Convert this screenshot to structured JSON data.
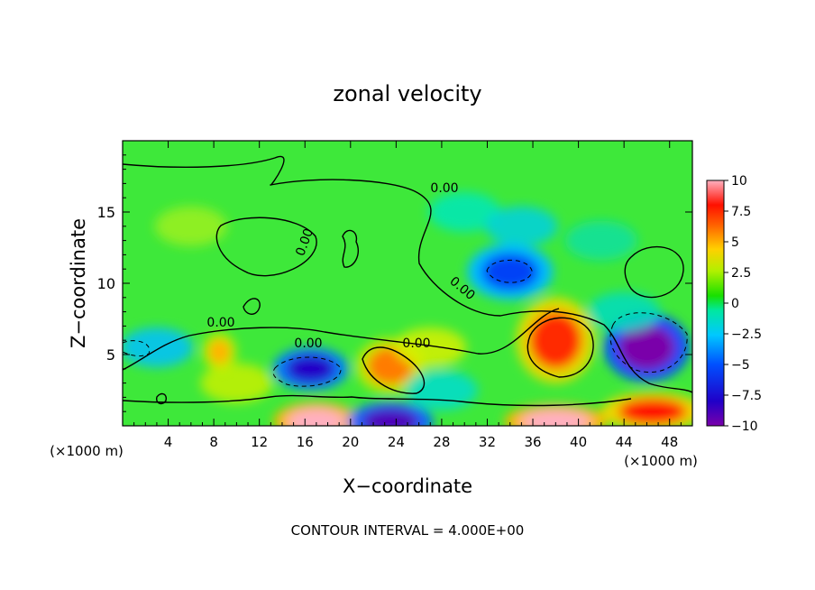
{
  "chart_data": {
    "type": "heatmap",
    "title": "zonal velocity",
    "xlabel": "X−coordinate",
    "ylabel": "Z−coordinate",
    "x_unit": "(×1000 m)",
    "x_unit_right": "(×1000 m)",
    "footer": "CONTOUR INTERVAL = 4.000E+00",
    "xlim": [
      0,
      50
    ],
    "ylim": [
      0,
      20
    ],
    "x_ticks": [
      "4",
      "8",
      "12",
      "16",
      "20",
      "24",
      "28",
      "32",
      "36",
      "40",
      "44",
      "48"
    ],
    "y_ticks": [
      "5",
      "10",
      "15"
    ],
    "colorbar": {
      "ticks": [
        "10",
        "7.5",
        "5",
        "2.5",
        "0",
        "−2.5",
        "−5",
        "−7.5",
        "−10"
      ],
      "range": [
        -10,
        10
      ]
    },
    "contour_labels": [
      "0.00",
      "0.00",
      "0.00",
      "0.00",
      "0.00",
      "0.00"
    ],
    "features": [
      {
        "x": 25,
        "z": 9,
        "value": 1.0,
        "rx": 30,
        "rz": 6,
        "note": "background"
      },
      {
        "x": 34,
        "z": 10.8,
        "value": -5.5,
        "rx": 2.5,
        "rz": 1.3
      },
      {
        "x": 38,
        "z": 6.0,
        "value": 7.5,
        "rx": 2.3,
        "rz": 2.0
      },
      {
        "x": 46,
        "z": 5.5,
        "value": -10,
        "rx": 2.5,
        "rz": 1.6
      },
      {
        "x": 16.5,
        "z": 4.0,
        "value": -8,
        "rx": 2.2,
        "rz": 1.0
      },
      {
        "x": 23.5,
        "z": 4.2,
        "value": 6,
        "rx": 2.0,
        "rz": 1.3
      },
      {
        "x": 8.5,
        "z": 5.2,
        "value": 5,
        "rx": 1.0,
        "rz": 0.9
      },
      {
        "x": 17,
        "z": 0.3,
        "value": 10,
        "rx": 2.5,
        "rz": 0.9
      },
      {
        "x": 23.5,
        "z": 0.3,
        "value": -9,
        "rx": 2.5,
        "rz": 0.9
      },
      {
        "x": 38,
        "z": 0.3,
        "value": 10,
        "rx": 3.0,
        "rz": 0.8
      },
      {
        "x": 46.5,
        "z": 1.0,
        "value": 8,
        "rx": 3.0,
        "rz": 0.9
      }
    ]
  }
}
